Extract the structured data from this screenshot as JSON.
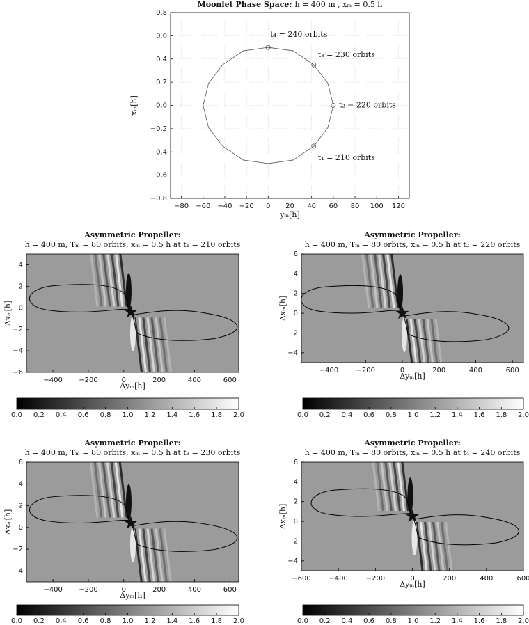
{
  "chart_data": [
    {
      "type": "line",
      "title": "Moonlet Phase Space:",
      "subtitle": "h = 400 m , xₘ = 0.5 h",
      "xlabel": "yₘ[h]",
      "ylabel": "xₘ[h]",
      "xlim": [
        -90,
        130
      ],
      "xticks": [
        {
          "value": -80,
          "label": "−80"
        },
        {
          "value": -60,
          "label": "−60"
        },
        {
          "value": -40,
          "label": "−40"
        },
        {
          "value": -20,
          "label": "−20"
        },
        0,
        20,
        40,
        60,
        80,
        100,
        120
      ],
      "ylim": [
        -0.8,
        0.8
      ],
      "yticks": [
        {
          "value": -0.8,
          "label": "−0.8"
        },
        {
          "value": -0.6,
          "label": "−0.6"
        },
        {
          "value": -0.4,
          "label": "−0.4"
        },
        {
          "value": -0.2,
          "label": "−0.2"
        },
        {
          "value": 0,
          "label": "0.0"
        },
        0.2,
        0.4,
        0.6,
        0.8
      ],
      "grid": true,
      "series": [
        {
          "color": "#555555",
          "x": [
            0,
            23,
            42,
            55,
            60,
            55,
            42,
            23,
            0,
            -23,
            -42,
            -55,
            -60,
            -55,
            -42,
            -23,
            0
          ],
          "y": [
            0.5,
            0.47,
            0.35,
            0.19,
            0,
            -0.19,
            -0.35,
            -0.47,
            -0.5,
            -0.47,
            -0.35,
            -0.19,
            0,
            0.19,
            0.35,
            0.47,
            0.5
          ]
        }
      ],
      "markers": [
        {
          "x": 42,
          "y": -0.35,
          "label": "t₁ = 210 orbits"
        },
        {
          "x": 60,
          "y": 0,
          "label": "t₂ = 220 orbits"
        },
        {
          "x": 42,
          "y": 0.35,
          "label": "t₃ = 230 orbits"
        },
        {
          "x": 0,
          "y": 0.5,
          "label": "t₄ = 240 orbits"
        }
      ]
    },
    {
      "type": "heatmap",
      "title": "Asymmetric Propeller:",
      "subtitle": "h = 400 m, Tₘ = 80 orbits, xₘ = 0.5 h at t₁ = 210 orbits",
      "xlabel": "Δyₘ[h]",
      "ylabel": "Δxₘ[h]",
      "xlim": [
        -550,
        650
      ],
      "xticks": [
        {
          "value": -400,
          "label": "−400"
        },
        {
          "value": -200,
          "label": "−200"
        },
        0,
        200,
        400,
        600
      ],
      "ylim": [
        -6,
        5
      ],
      "yticks": [
        {
          "value": -6,
          "label": "−6"
        },
        {
          "value": -4,
          "label": "−4"
        },
        {
          "value": -2,
          "label": "−2"
        },
        0,
        2,
        4
      ],
      "moonlet": {
        "x": 40,
        "y": -0.4
      },
      "clim": [
        0,
        2
      ],
      "cticks": [
        {
          "value": 0,
          "label": "0.0"
        },
        0.2,
        0.4,
        0.6,
        0.8,
        {
          "value": 1,
          "label": "1.0"
        },
        1.2,
        1.4,
        1.6,
        1.8,
        {
          "value": 2,
          "label": "2.0"
        }
      ]
    },
    {
      "type": "heatmap",
      "title": "Asymmetric Propeller:",
      "subtitle": "h = 400 m, Tₘ = 80 orbits, xₘ = 0.5 h at t₂ = 220 orbits",
      "xlabel": "Δyₘ[h]",
      "ylabel": "Δxₘ[h]",
      "xlim": [
        -550,
        660
      ],
      "xticks": [
        {
          "value": -400,
          "label": "−400"
        },
        {
          "value": -200,
          "label": "−200"
        },
        0,
        200,
        400,
        600
      ],
      "ylim": [
        -5,
        6
      ],
      "yticks": [
        {
          "value": -4,
          "label": "−4"
        },
        {
          "value": -2,
          "label": "−2"
        },
        0,
        2,
        4,
        6
      ],
      "moonlet": {
        "x": 0,
        "y": 0
      },
      "clim": [
        0,
        2
      ],
      "cticks": [
        {
          "value": 0,
          "label": "0.0"
        },
        0.2,
        0.4,
        0.6,
        0.8,
        {
          "value": 1,
          "label": "1.0"
        },
        1.2,
        1.4,
        1.6,
        1.8,
        {
          "value": 2,
          "label": "2.0"
        }
      ]
    },
    {
      "type": "heatmap",
      "title": "Asymmetric Propeller:",
      "subtitle": "h = 400 m, Tₘ = 80 orbits, xₘ = 0.5 h at t₃ = 230 orbits",
      "xlabel": "Δyₘ[h]",
      "ylabel": "Δxₘ[h]",
      "xlim": [
        -550,
        650
      ],
      "xticks": [
        {
          "value": -400,
          "label": "−400"
        },
        {
          "value": -200,
          "label": "−200"
        },
        0,
        200,
        400,
        600
      ],
      "ylim": [
        -5,
        6
      ],
      "yticks": [
        {
          "value": -4,
          "label": "−4"
        },
        {
          "value": -2,
          "label": "−2"
        },
        0,
        2,
        4,
        6
      ],
      "moonlet": {
        "x": 40,
        "y": 0.4
      },
      "clim": [
        0,
        2
      ],
      "cticks": [
        {
          "value": 0,
          "label": "0.0"
        },
        0.2,
        0.4,
        0.6,
        0.8,
        {
          "value": 1,
          "label": "1.0"
        },
        1.2,
        1.4,
        1.6,
        1.8,
        {
          "value": 2,
          "label": "2.0"
        }
      ]
    },
    {
      "type": "heatmap",
      "title": "Asymmetric Propeller:",
      "subtitle": "h = 400 m, Tₘ = 80 orbits, xₘ = 0.5 h at t₄ = 240 orbits",
      "xlabel": "Δyₘ[h]",
      "ylabel": "Δxₘ[h]",
      "xlim": [
        -600,
        600
      ],
      "xticks": [
        {
          "value": -600,
          "label": "−600"
        },
        {
          "value": -400,
          "label": "−400"
        },
        {
          "value": -200,
          "label": "−200"
        },
        0,
        200,
        400,
        600
      ],
      "ylim": [
        -5,
        6
      ],
      "yticks": [
        {
          "value": -4,
          "label": "−4"
        },
        {
          "value": -2,
          "label": "−2"
        },
        0,
        2,
        4,
        6
      ],
      "moonlet": {
        "x": 0,
        "y": 0.5
      },
      "clim": [
        0,
        2
      ],
      "cticks": [
        {
          "value": 0,
          "label": "0.0"
        },
        0.2,
        0.4,
        0.6,
        0.8,
        {
          "value": 1,
          "label": "1.0"
        },
        1.2,
        1.4,
        1.6,
        1.8,
        {
          "value": 2,
          "label": "2.0"
        }
      ]
    }
  ]
}
